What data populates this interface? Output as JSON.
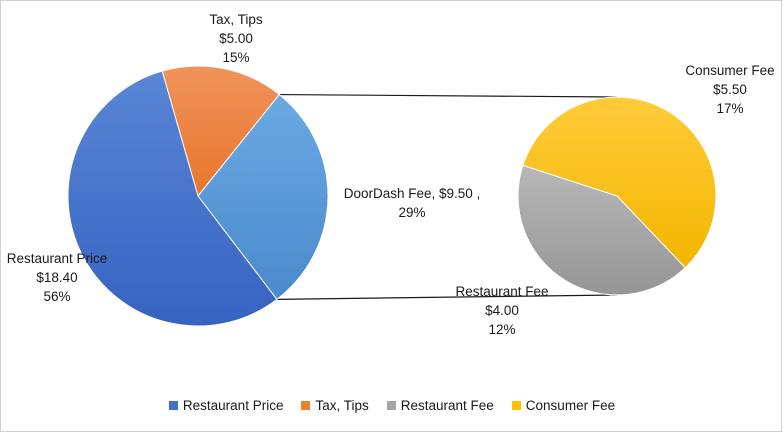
{
  "chart_data": {
    "type": "pie",
    "subtype": "pie-of-pie",
    "title": "",
    "main_pie": {
      "slices": [
        {
          "label": "Restaurant Price",
          "value": 18.4,
          "value_label": "$18.40",
          "percent_label": "56%",
          "color": "#4472C4"
        },
        {
          "label": "Tax, Tips",
          "value": 5.0,
          "value_label": "$5.00",
          "percent_label": "15%",
          "color": "#ED7D31"
        },
        {
          "label": "DoorDash Fee",
          "value": 9.5,
          "value_label": "$9.50",
          "percent_label": "29%",
          "color": "#5B9BD5",
          "text": "DoorDash Fee,  $9.50 ,"
        }
      ]
    },
    "secondary_pie": {
      "slices": [
        {
          "label": "Consumer Fee",
          "value": 5.5,
          "value_label": "$5.50",
          "percent_label": "17%",
          "color": "#FFC000"
        },
        {
          "label": "Restaurant Fee",
          "value": 4.0,
          "value_label": "$4.00",
          "percent_label": "12%",
          "color": "#A5A5A5"
        }
      ]
    },
    "legend": {
      "position": "bottom",
      "items": [
        {
          "label": "Restaurant Price",
          "color": "#4472C4"
        },
        {
          "label": "Tax, Tips",
          "color": "#ED7D31"
        },
        {
          "label": "Restaurant Fee",
          "color": "#A5A5A5"
        },
        {
          "label": "Consumer Fee",
          "color": "#FFC000"
        }
      ]
    }
  }
}
